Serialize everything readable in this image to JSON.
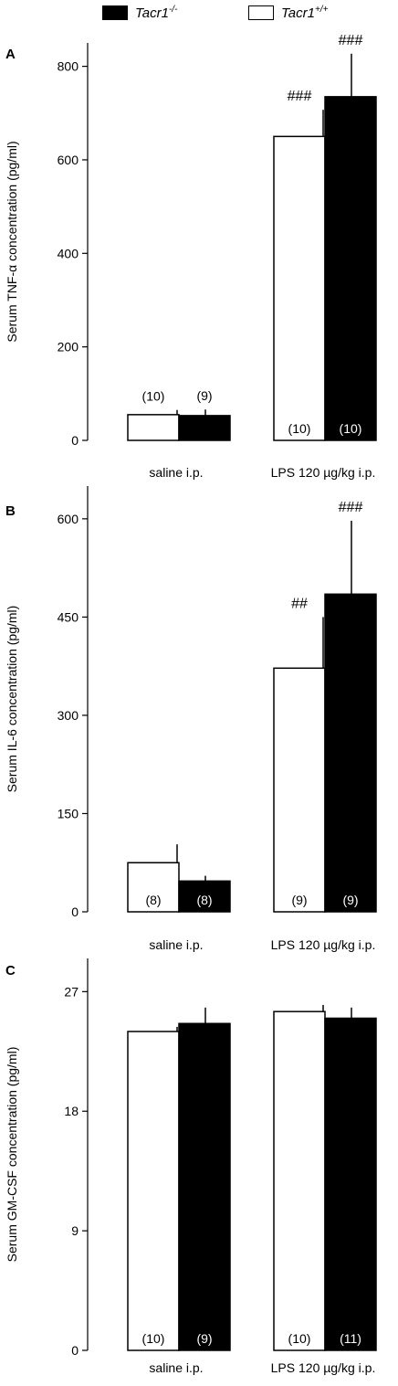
{
  "legend": [
    {
      "name": "Tacr1",
      "sup": "-/-",
      "fill": "#000000"
    },
    {
      "name": "Tacr1",
      "sup": "+/+",
      "fill": "#ffffff"
    }
  ],
  "chart_data": [
    {
      "type": "bar",
      "panel_label": "A",
      "ylabel": "Serum TNF-α concentration (pg/ml)",
      "ylim": [
        0,
        850
      ],
      "yticks": [
        0,
        200,
        400,
        600,
        800
      ],
      "groups": [
        {
          "label": "saline i.p.",
          "bars": [
            {
              "genotype": "+/+",
              "value": 55,
              "error": 10,
              "n": "(10)",
              "n_pos": "above",
              "sig": ""
            },
            {
              "genotype": "-/-",
              "value": 53,
              "error": 13,
              "n": "(9)",
              "n_pos": "above",
              "sig": ""
            }
          ]
        },
        {
          "label": "LPS  120 µg/kg i.p.",
          "bars": [
            {
              "genotype": "+/+",
              "value": 650,
              "error": 57,
              "n": "(10)",
              "n_pos": "inside",
              "sig": "###"
            },
            {
              "genotype": "-/-",
              "value": 735,
              "error": 92,
              "n": "(10)",
              "n_pos": "inside",
              "sig": "###"
            }
          ]
        }
      ]
    },
    {
      "type": "bar",
      "panel_label": "B",
      "ylabel": "Serum IL-6 concentration (pg/ml)",
      "ylim": [
        0,
        650
      ],
      "yticks": [
        0,
        150,
        300,
        450,
        600
      ],
      "groups": [
        {
          "label": "saline i.p.",
          "bars": [
            {
              "genotype": "+/+",
              "value": 75,
              "error": 28,
              "n": "(8)",
              "n_pos": "inside",
              "sig": ""
            },
            {
              "genotype": "-/-",
              "value": 47,
              "error": 8,
              "n": "(8)",
              "n_pos": "inside",
              "sig": ""
            }
          ]
        },
        {
          "label": "LPS  120 µg/kg i.p.",
          "bars": [
            {
              "genotype": "+/+",
              "value": 372,
              "error": 78,
              "n": "(9)",
              "n_pos": "inside",
              "sig": "##"
            },
            {
              "genotype": "-/-",
              "value": 485,
              "error": 112,
              "n": "(9)",
              "n_pos": "inside",
              "sig": "###"
            }
          ]
        }
      ]
    },
    {
      "type": "bar",
      "panel_label": "C",
      "ylabel": "Serum GM-CSF concentration (pg/ml)",
      "ylim": [
        0,
        29.5
      ],
      "yticks": [
        0,
        9,
        18,
        27
      ],
      "groups": [
        {
          "label": "saline i.p.",
          "bars": [
            {
              "genotype": "+/+",
              "value": 24.0,
              "error": 0.35,
              "n": "(10)",
              "n_pos": "inside",
              "sig": ""
            },
            {
              "genotype": "-/-",
              "value": 24.6,
              "error": 1.2,
              "n": "(9)",
              "n_pos": "inside",
              "sig": ""
            }
          ]
        },
        {
          "label": "LPS  120 µg/kg i.p.",
          "bars": [
            {
              "genotype": "+/+",
              "value": 25.5,
              "error": 0.5,
              "n": "(10)",
              "n_pos": "inside",
              "sig": ""
            },
            {
              "genotype": "-/-",
              "value": 25.0,
              "error": 0.8,
              "n": "(11)",
              "n_pos": "inside",
              "sig": ""
            }
          ]
        }
      ]
    }
  ]
}
